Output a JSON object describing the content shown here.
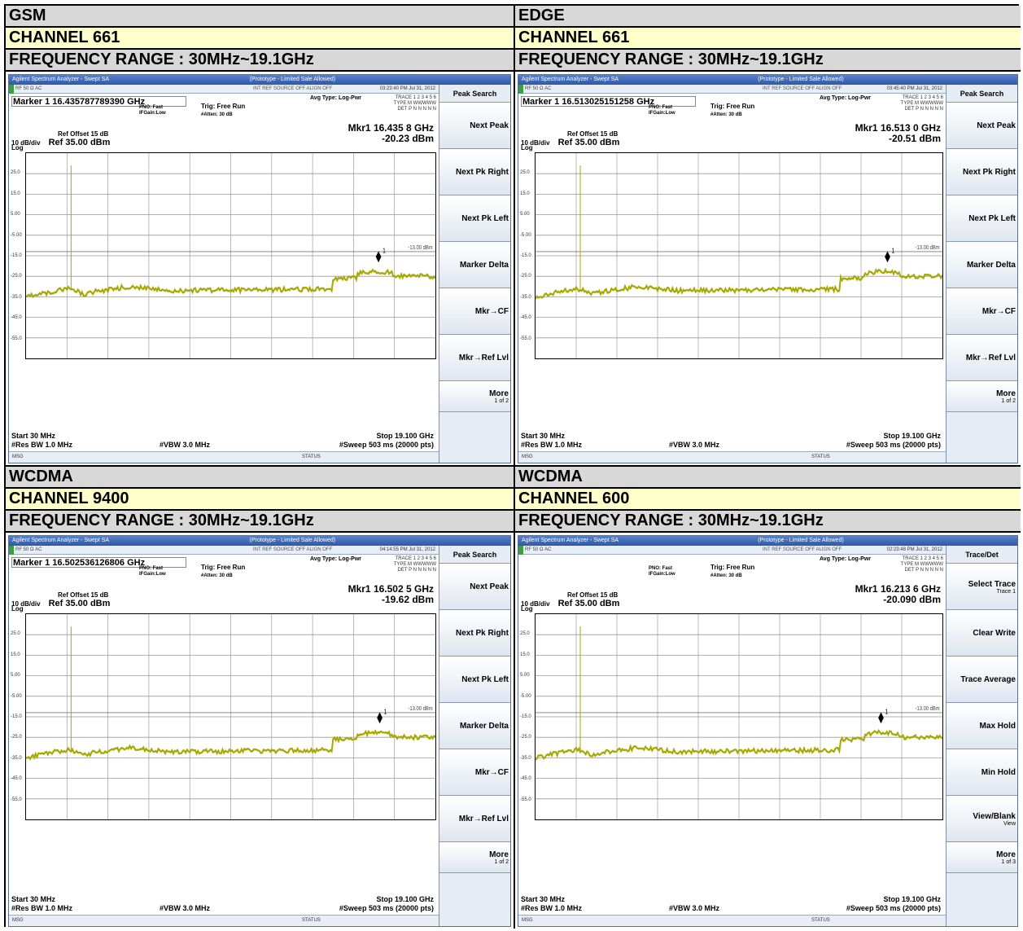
{
  "panels": [
    {
      "tech": "GSM",
      "channel": "CHANNEL 661",
      "freq_range": "FREQUENCY RANGE : 30MHz~19.1GHz",
      "title": "Agilent Spectrum Analyzer - Swept SA",
      "banner": "(Prototype - Limited Sale Allowed)",
      "status_left": "RF   50 Ω  AC",
      "status_mid": "INT REF  SOURCE OFF   ALIGN OFF",
      "datetime": "03:23:40 PM Jul 31, 2012",
      "marker_label": "Marker 1  16.435787789390 GHz",
      "pno": "PNO: Fast",
      "ifgain": "IFGain:Low",
      "trig": "Trig: Free Run",
      "atten": "#Atten: 30 dB",
      "avg_type": "Avg Type: Log-Pwr",
      "trace_line": "TRACE 1 2 3 4 5 6",
      "type_line": "TYPE M WWWWW",
      "det_line": "DET P N N N N N",
      "mkr_freq": "Mkr1 16.435 8 GHz",
      "mkr_amp": "-20.23 dBm",
      "ref_offset": "Ref Offset 15 dB",
      "scale": "10 dB/div",
      "ref_level": "Ref 35.00 dBm",
      "log": "Log",
      "limit_label": "-13.00 dBm",
      "marker_num": "1",
      "start": "Start 30 MHz",
      "stop": "Stop 19.100 GHz",
      "res_bw": "#Res BW 1.0 MHz",
      "vbw": "#VBW 3.0 MHz",
      "sweep": "#Sweep  503 ms (20000 pts)",
      "msg": "MSG",
      "status": "STATUS",
      "softkey_title": "Peak Search",
      "softkeys": [
        {
          "label": "Next Peak",
          "sub": ""
        },
        {
          "label": "Next Pk Right",
          "sub": ""
        },
        {
          "label": "Next Pk Left",
          "sub": ""
        },
        {
          "label": "Marker Delta",
          "sub": ""
        },
        {
          "label": "Mkr→CF",
          "sub": ""
        },
        {
          "label": "Mkr→Ref Lvl",
          "sub": ""
        }
      ],
      "more": "More",
      "more_sub": "1 of 2",
      "marker_frac": 0.861
    },
    {
      "tech": "EDGE",
      "channel": "CHANNEL 661",
      "freq_range": "FREQUENCY RANGE : 30MHz~19.1GHz",
      "title": "Agilent Spectrum Analyzer - Swept SA",
      "banner": "(Prototype - Limited Sale Allowed)",
      "status_left": "RF   50 Ω  AC",
      "status_mid": "INT REF  SOURCE OFF   ALIGN OFF",
      "datetime": "03:45:40 PM Jul 31, 2012",
      "marker_label": "Marker 1  16.513025151258 GHz",
      "pno": "PNO: Fast",
      "ifgain": "IFGain:Low",
      "trig": "Trig: Free Run",
      "atten": "#Atten: 30 dB",
      "avg_type": "Avg Type: Log-Pwr",
      "trace_line": "TRACE 1 2 3 4 5 6",
      "type_line": "TYPE M WWWWW",
      "det_line": "DET P N N N N N",
      "mkr_freq": "Mkr1 16.513 0 GHz",
      "mkr_amp": "-20.51 dBm",
      "ref_offset": "Ref Offset 15 dB",
      "scale": "10 dB/div",
      "ref_level": "Ref 35.00 dBm",
      "log": "Log",
      "limit_label": "-13.00 dBm",
      "marker_num": "1",
      "start": "Start 30 MHz",
      "stop": "Stop 19.100 GHz",
      "res_bw": "#Res BW 1.0 MHz",
      "vbw": "#VBW 3.0 MHz",
      "sweep": "#Sweep  503 ms (20000 pts)",
      "msg": "MSG",
      "status": "STATUS",
      "softkey_title": "Peak Search",
      "softkeys": [
        {
          "label": "Next Peak",
          "sub": ""
        },
        {
          "label": "Next Pk Right",
          "sub": ""
        },
        {
          "label": "Next Pk Left",
          "sub": ""
        },
        {
          "label": "Marker Delta",
          "sub": ""
        },
        {
          "label": "Mkr→CF",
          "sub": ""
        },
        {
          "label": "Mkr→Ref Lvl",
          "sub": ""
        }
      ],
      "more": "More",
      "more_sub": "1 of 2",
      "marker_frac": 0.865
    },
    {
      "tech": "WCDMA",
      "channel": "CHANNEL 9400",
      "freq_range": "FREQUENCY RANGE : 30MHz~19.1GHz",
      "title": "Agilent Spectrum Analyzer - Swept SA",
      "banner": "(Prototype - Limited Sale Allowed)",
      "status_left": "RF   50 Ω  AC",
      "status_mid": "INT REF  SOURCE OFF   ALIGN OFF",
      "datetime": "04:14:55 PM Jul 31, 2012",
      "marker_label": "Marker 1  16.502536126806 GHz",
      "pno": "PNO: Fast",
      "ifgain": "IFGain:Low",
      "trig": "Trig: Free Run",
      "atten": "#Atten: 30 dB",
      "avg_type": "Avg Type: Log-Pwr",
      "trace_line": "TRACE 1 2 3 4 5 6",
      "type_line": "TYPE M WWWWW",
      "det_line": "DET P N N N N N",
      "mkr_freq": "Mkr1 16.502 5 GHz",
      "mkr_amp": "-19.62 dBm",
      "ref_offset": "Ref Offset 15 dB",
      "scale": "10 dB/div",
      "ref_level": "Ref 35.00 dBm",
      "log": "Log",
      "limit_label": "-13.00 dBm",
      "marker_num": "1",
      "start": "Start 30 MHz",
      "stop": "Stop 19.100 GHz",
      "res_bw": "#Res BW 1.0 MHz",
      "vbw": "#VBW 3.0 MHz",
      "sweep": "#Sweep  503 ms (20000 pts)",
      "msg": "MSG",
      "status": "STATUS",
      "softkey_title": "Peak Search",
      "softkeys": [
        {
          "label": "Next Peak",
          "sub": ""
        },
        {
          "label": "Next Pk Right",
          "sub": ""
        },
        {
          "label": "Next Pk Left",
          "sub": ""
        },
        {
          "label": "Marker Delta",
          "sub": ""
        },
        {
          "label": "Mkr→CF",
          "sub": ""
        },
        {
          "label": "Mkr→Ref Lvl",
          "sub": ""
        }
      ],
      "more": "More",
      "more_sub": "1 of 2",
      "marker_frac": 0.864
    },
    {
      "tech": "WCDMA",
      "channel": "CHANNEL 600",
      "freq_range": "FREQUENCY RANGE : 30MHz~19.1GHz",
      "title": "Agilent Spectrum Analyzer - Swept SA",
      "banner": "(Prototype - Limited Sale Allowed)",
      "status_left": "RF   50 Ω  AC",
      "status_mid": "INT REF  SOURCE OFF   ALIGN OFF",
      "datetime": "02:23:48 PM Jul 31, 2012",
      "marker_label": "",
      "pno": "PNO: Fast",
      "ifgain": "IFGain:Low",
      "trig": "Trig: Free Run",
      "atten": "#Atten: 30 dB",
      "avg_type": "Avg Type: Log-Pwr",
      "trace_line": "TRACE 1 2 3 4 5 6",
      "type_line": "TYPE M WWWWW",
      "det_line": "DET P N N N N N",
      "mkr_freq": "Mkr1 16.213 6 GHz",
      "mkr_amp": "-20.090 dBm",
      "ref_offset": "Ref Offset 15 dB",
      "scale": "10 dB/div",
      "ref_level": "Ref 35.00 dBm",
      "log": "Log",
      "limit_label": "-13.00 dBm",
      "marker_num": "1",
      "start": "Start 30 MHz",
      "stop": "Stop 19.100 GHz",
      "res_bw": "#Res BW 1.0 MHz",
      "vbw": "#VBW 3.0 MHz",
      "sweep": "#Sweep  503 ms (20000 pts)",
      "msg": "MSG",
      "status": "STATUS",
      "softkey_title": "Trace/Det",
      "softkeys": [
        {
          "label": "Select Trace",
          "sub": "Trace 1"
        },
        {
          "label": "Clear Write",
          "sub": ""
        },
        {
          "label": "Trace Average",
          "sub": ""
        },
        {
          "label": "Max Hold",
          "sub": ""
        },
        {
          "label": "Min Hold",
          "sub": ""
        },
        {
          "label": "View/Blank",
          "sub": "View"
        }
      ],
      "more": "More",
      "more_sub": "1 of 3",
      "marker_frac": 0.849
    }
  ],
  "y_ticks": [
    "25.0",
    "15.0",
    "5.00",
    "-5.00",
    "-15.0",
    "-25.0",
    "-35.0",
    "-45.0",
    "-55.0"
  ],
  "colors": {
    "trace": "#a8a800",
    "limit": "#444444",
    "titlebar": "#2c58a8"
  }
}
